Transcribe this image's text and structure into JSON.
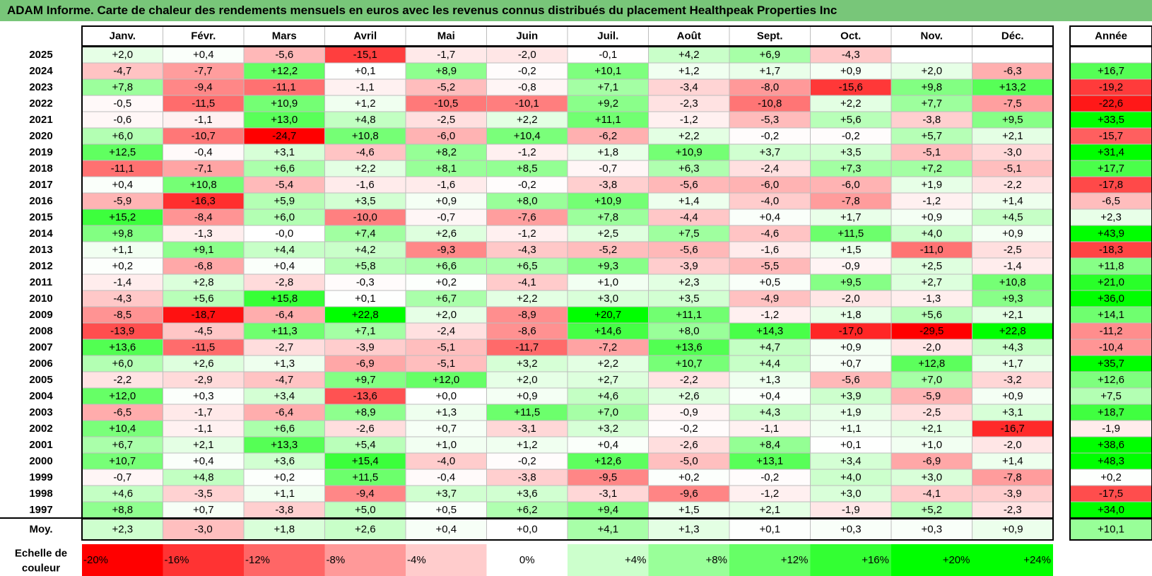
{
  "title": "ADAM Informe. Carte de chaleur des rendements mensuels en euros avec les revenus connus distribués du placement Healthpeak Properties Inc",
  "chart_data": {
    "type": "heatmap",
    "months": [
      "Janv.",
      "Févr.",
      "Mars",
      "Avril",
      "Mai",
      "Juin",
      "Juil.",
      "Août",
      "Sept.",
      "Oct.",
      "Nov.",
      "Déc."
    ],
    "year_header": "Année",
    "rows": [
      {
        "year": "2025",
        "values": [
          "+2,0",
          "+0,4",
          "-5,6",
          "-15,1",
          "-1,7",
          "-2,0",
          "-0,1",
          "+4,2",
          "+6,9",
          "-4,3",
          "",
          ""
        ],
        "annual": ""
      },
      {
        "year": "2024",
        "values": [
          "-4,7",
          "-7,7",
          "+12,2",
          "+0,1",
          "+8,9",
          "-0,2",
          "+10,1",
          "+1,2",
          "+1,7",
          "+0,9",
          "+2,0",
          "-6,3"
        ],
        "annual": "+16,7"
      },
      {
        "year": "2023",
        "values": [
          "+7,8",
          "-9,4",
          "-11,1",
          "-1,1",
          "-5,2",
          "-0,8",
          "+7,1",
          "-3,4",
          "-8,0",
          "-15,6",
          "+9,8",
          "+13,2"
        ],
        "annual": "-19,2"
      },
      {
        "year": "2022",
        "values": [
          "-0,5",
          "-11,5",
          "+10,9",
          "+1,2",
          "-10,5",
          "-10,1",
          "+9,2",
          "-2,3",
          "-10,8",
          "+2,2",
          "+7,7",
          "-7,5"
        ],
        "annual": "-22,6"
      },
      {
        "year": "2021",
        "values": [
          "-0,6",
          "-1,1",
          "+13,0",
          "+4,8",
          "-2,5",
          "+2,2",
          "+11,1",
          "-1,2",
          "-5,3",
          "+5,6",
          "-3,8",
          "+9,5"
        ],
        "annual": "+33,5"
      },
      {
        "year": "2020",
        "values": [
          "+6,0",
          "-10,7",
          "-24,7",
          "+10,8",
          "-6,0",
          "+10,4",
          "-6,2",
          "+2,2",
          "-0,2",
          "-0,2",
          "+5,7",
          "+2,1"
        ],
        "annual": "-15,7"
      },
      {
        "year": "2019",
        "values": [
          "+12,5",
          "-0,4",
          "+3,1",
          "-4,6",
          "+8,2",
          "-1,2",
          "+1,8",
          "+10,9",
          "+3,7",
          "+3,5",
          "-5,1",
          "-3,0"
        ],
        "annual": "+31,4"
      },
      {
        "year": "2018",
        "values": [
          "-11,1",
          "-7,1",
          "+6,6",
          "+2,2",
          "+8,1",
          "+8,5",
          "-0,7",
          "+6,3",
          "-2,4",
          "+7,3",
          "+7,2",
          "-5,1"
        ],
        "annual": "+17,7"
      },
      {
        "year": "2017",
        "values": [
          "+0,4",
          "+10,8",
          "-5,4",
          "-1,6",
          "-1,6",
          "-0,2",
          "-3,8",
          "-5,6",
          "-6,0",
          "-6,0",
          "+1,9",
          "-2,2"
        ],
        "annual": "-17,8"
      },
      {
        "year": "2016",
        "values": [
          "-5,9",
          "-16,3",
          "+5,9",
          "+3,5",
          "+0,9",
          "+8,0",
          "+10,9",
          "+1,4",
          "-4,0",
          "-7,8",
          "-1,2",
          "+1,4"
        ],
        "annual": "-6,5"
      },
      {
        "year": "2015",
        "values": [
          "+15,2",
          "-8,4",
          "+6,0",
          "-10,0",
          "-0,7",
          "-7,6",
          "+7,8",
          "-4,4",
          "+0,4",
          "+1,7",
          "+0,9",
          "+4,5"
        ],
        "annual": "+2,3"
      },
      {
        "year": "2014",
        "values": [
          "+9,8",
          "-1,3",
          "-0,0",
          "+7,4",
          "+2,6",
          "-1,2",
          "+2,5",
          "+7,5",
          "-4,6",
          "+11,5",
          "+4,0",
          "+0,9"
        ],
        "annual": "+43,9"
      },
      {
        "year": "2013",
        "values": [
          "+1,1",
          "+9,1",
          "+4,4",
          "+4,2",
          "-9,3",
          "-4,3",
          "-5,2",
          "-5,6",
          "-1,6",
          "+1,5",
          "-11,0",
          "-2,5"
        ],
        "annual": "-18,3"
      },
      {
        "year": "2012",
        "values": [
          "+0,2",
          "-6,8",
          "+0,4",
          "+5,8",
          "+6,6",
          "+6,5",
          "+9,3",
          "-3,9",
          "-5,5",
          "-0,9",
          "+2,5",
          "-1,4"
        ],
        "annual": "+11,8"
      },
      {
        "year": "2011",
        "values": [
          "-1,4",
          "+2,8",
          "-2,8",
          "-0,3",
          "+0,2",
          "-4,1",
          "+1,0",
          "+2,3",
          "+0,5",
          "+9,5",
          "+2,7",
          "+10,8"
        ],
        "annual": "+21,0"
      },
      {
        "year": "2010",
        "values": [
          "-4,3",
          "+5,6",
          "+15,8",
          "+0,1",
          "+6,7",
          "+2,2",
          "+3,0",
          "+3,5",
          "-4,9",
          "-2,0",
          "-1,3",
          "+9,3"
        ],
        "annual": "+36,0"
      },
      {
        "year": "2009",
        "values": [
          "-8,5",
          "-18,7",
          "-6,4",
          "+22,8",
          "+2,0",
          "-8,9",
          "+20,7",
          "+11,1",
          "-1,2",
          "+1,8",
          "+5,6",
          "+2,1"
        ],
        "annual": "+14,1"
      },
      {
        "year": "2008",
        "values": [
          "-13,9",
          "-4,5",
          "+11,3",
          "+7,1",
          "-2,4",
          "-8,6",
          "+14,6",
          "+8,0",
          "+14,3",
          "-17,0",
          "-29,5",
          "+22,8"
        ],
        "annual": "-11,2"
      },
      {
        "year": "2007",
        "values": [
          "+13,6",
          "-11,5",
          "-2,7",
          "-3,9",
          "-5,1",
          "-11,7",
          "-7,2",
          "+13,6",
          "+4,7",
          "+0,9",
          "-2,0",
          "+4,3"
        ],
        "annual": "-10,4"
      },
      {
        "year": "2006",
        "values": [
          "+6,0",
          "+2,6",
          "+1,3",
          "-6,9",
          "-5,1",
          "+3,2",
          "+2,2",
          "+10,7",
          "+4,4",
          "+0,7",
          "+12,8",
          "+1,7"
        ],
        "annual": "+35,7"
      },
      {
        "year": "2005",
        "values": [
          "-2,2",
          "-2,9",
          "-4,7",
          "+9,7",
          "+12,0",
          "+2,0",
          "+2,7",
          "-2,2",
          "+1,3",
          "-5,6",
          "+7,0",
          "-3,2"
        ],
        "annual": "+12,6"
      },
      {
        "year": "2004",
        "values": [
          "+12,0",
          "+0,3",
          "+3,4",
          "-13,6",
          "+0,0",
          "+0,9",
          "+4,6",
          "+2,6",
          "+0,4",
          "+3,9",
          "-5,9",
          "+0,9"
        ],
        "annual": "+7,5"
      },
      {
        "year": "2003",
        "values": [
          "-6,5",
          "-1,7",
          "-6,4",
          "+8,9",
          "+1,3",
          "+11,5",
          "+7,0",
          "-0,9",
          "+4,3",
          "+1,9",
          "-2,5",
          "+3,1"
        ],
        "annual": "+18,7"
      },
      {
        "year": "2002",
        "values": [
          "+10,4",
          "-1,1",
          "+6,6",
          "-2,6",
          "+0,7",
          "-3,1",
          "+3,2",
          "-0,2",
          "-1,1",
          "+1,1",
          "+2,1",
          "-16,7"
        ],
        "annual": "-1,9"
      },
      {
        "year": "2001",
        "values": [
          "+6,7",
          "+2,1",
          "+13,3",
          "+5,4",
          "+1,0",
          "+1,2",
          "+0,4",
          "-2,6",
          "+8,4",
          "+0,1",
          "+1,0",
          "-2,0"
        ],
        "annual": "+38,6"
      },
      {
        "year": "2000",
        "values": [
          "+10,7",
          "+0,4",
          "+3,6",
          "+15,4",
          "-4,0",
          "-0,2",
          "+12,6",
          "-5,0",
          "+13,1",
          "+3,4",
          "-6,9",
          "+1,4"
        ],
        "annual": "+48,3"
      },
      {
        "year": "1999",
        "values": [
          "-0,7",
          "+4,8",
          "+0,2",
          "+11,5",
          "-0,4",
          "-3,8",
          "-9,5",
          "+0,2",
          "-0,2",
          "+4,0",
          "+3,0",
          "-7,8"
        ],
        "annual": "+0,2"
      },
      {
        "year": "1998",
        "values": [
          "+4,6",
          "-3,5",
          "+1,1",
          "-9,4",
          "+3,7",
          "+3,6",
          "-3,1",
          "-9,6",
          "-1,2",
          "+3,0",
          "-4,1",
          "-3,9"
        ],
        "annual": "-17,5"
      },
      {
        "year": "1997",
        "values": [
          "+8,8",
          "+0,7",
          "-3,8",
          "+5,0",
          "+0,5",
          "+6,2",
          "+9,4",
          "+1,5",
          "+2,1",
          "-1,9",
          "+5,2",
          "-2,3"
        ],
        "annual": "+34,0"
      }
    ],
    "average": {
      "label": "Moy.",
      "values": [
        "+2,3",
        "-3,0",
        "+1,8",
        "+2,6",
        "+0,4",
        "+0,0",
        "+4,1",
        "+1,3",
        "+0,1",
        "+0,3",
        "+0,3",
        "+0,9"
      ],
      "annual": "+10,1"
    },
    "color_scale": {
      "label_line1": "Echelle de",
      "label_line2": "couleur",
      "steps": [
        {
          "label": "-20%",
          "value": -20
        },
        {
          "label": "-16%",
          "value": -16
        },
        {
          "label": "-12%",
          "value": -12
        },
        {
          "label": "-8%",
          "value": -8
        },
        {
          "label": "-4%",
          "value": -4
        },
        {
          "label": "0%",
          "value": 0
        },
        {
          "label": "+4%",
          "value": 4
        },
        {
          "label": "+8%",
          "value": 8
        },
        {
          "label": "+12%",
          "value": 12
        },
        {
          "label": "+16%",
          "value": 16
        },
        {
          "label": "+20%",
          "value": 20
        },
        {
          "label": "+24%",
          "value": 24
        }
      ]
    },
    "colors": {
      "negative": "#ff0000",
      "neutral": "#ffffff",
      "positive": "#00ff00",
      "title_bar": "#78c679"
    }
  }
}
